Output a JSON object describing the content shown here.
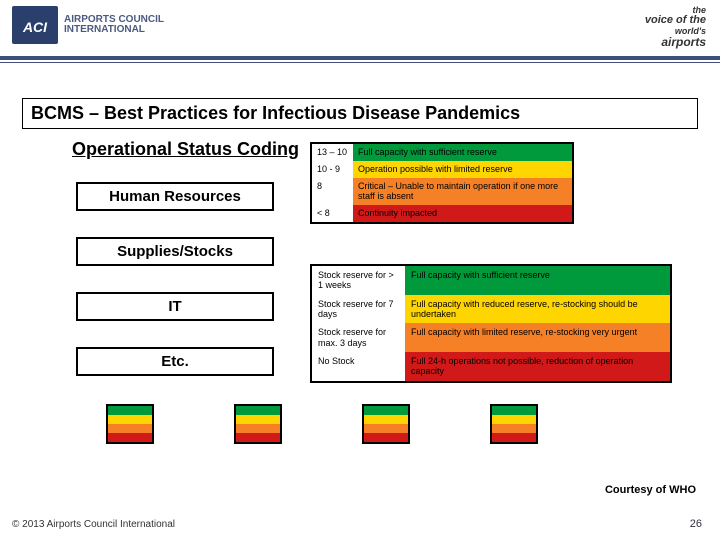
{
  "logo": {
    "acronym": "ACI",
    "name_line1": "AIRPORTS COUNCIL",
    "name_line2": "INTERNATIONAL"
  },
  "tagline": {
    "l1": "the",
    "l2": "voice of the",
    "l3": "world's",
    "l4": "airports"
  },
  "title": "BCMS – Best Practices for Infectious Disease Pandemics",
  "subtitle": "Operational Status Coding",
  "colors": {
    "green": "#009a3d",
    "yellow": "#ffd500",
    "orange": "#f58025",
    "red": "#d11919",
    "black": "#000000",
    "white": "#ffffff"
  },
  "categories": [
    {
      "label": "Human Resources"
    },
    {
      "label": "Supplies/Stocks"
    },
    {
      "label": "IT"
    },
    {
      "label": "Etc."
    }
  ],
  "hr_status": {
    "rows": [
      {
        "key": "13 – 10",
        "desc": "Full capacity with sufficient reserve",
        "color": "green"
      },
      {
        "key": "10 - 9",
        "desc": "Operation possible with limited reserve",
        "color": "yellow"
      },
      {
        "key": "8",
        "desc": "Critical – Unable to maintain operation if one more staff is absent",
        "color": "orange"
      },
      {
        "key": "< 8",
        "desc": "Continuity impacted",
        "color": "red"
      }
    ]
  },
  "stock_status": {
    "rows": [
      {
        "key": "Stock reserve for > 1 weeks",
        "desc": "Full capacity with sufficient reserve",
        "color": "green"
      },
      {
        "key": "Stock reserve for 7 days",
        "desc": "Full capacity with reduced reserve, re-stocking should be undertaken",
        "color": "yellow"
      },
      {
        "key": "Stock reserve for max. 3 days",
        "desc": "Full capacity with limited reserve, re-stocking very urgent",
        "color": "orange"
      },
      {
        "key": "No Stock",
        "desc": "Full 24-h operations not possible, reduction of operation capacity",
        "color": "red"
      }
    ]
  },
  "bars": {
    "count": 4,
    "stripe_colors": [
      "green",
      "yellow",
      "orange",
      "red"
    ]
  },
  "attribution": "Courtesy of WHO",
  "footer": {
    "copyright": "© 2013 Airports Council International",
    "page": "26"
  }
}
